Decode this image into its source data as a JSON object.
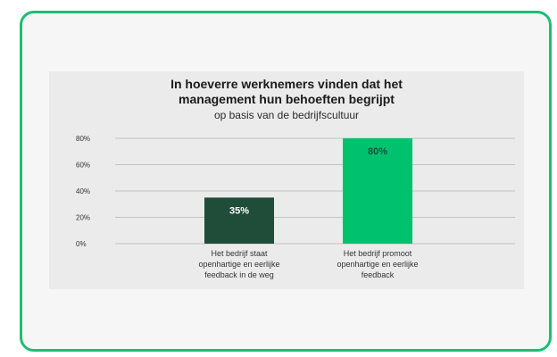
{
  "chart_data": {
    "type": "bar",
    "title": "In hoeverre werknemers vinden dat het management hun behoeften begrijpt",
    "title_lines": [
      "In hoeverre werknemers vinden dat het",
      "management hun behoeften begrijpt"
    ],
    "subtitle": "op basis van de bedrijfscultuur",
    "categories": [
      "Het bedrijf staat openhartige en eerlijke feedback in de weg",
      "Het bedrijf promoot openhartige en eerlijke feedback"
    ],
    "category_lines": [
      [
        "Het bedrijf staat",
        "openhartige en eerlijke",
        "feedback in de weg"
      ],
      [
        "Het bedrijf promoot",
        "openhartige en eerlijke",
        "feedback"
      ]
    ],
    "values": [
      35,
      80
    ],
    "data_labels": [
      "35%",
      "80%"
    ],
    "bar_colors": [
      "#1f4d3a",
      "#00c16e"
    ],
    "data_label_colors": [
      "#ffffff",
      "#1f4d3a"
    ],
    "yticks": [
      0,
      20,
      40,
      60,
      80
    ],
    "ytick_labels": [
      "0%",
      "20%",
      "40%",
      "60%",
      "80%"
    ],
    "ylim": [
      0,
      80
    ],
    "xlabel": "",
    "ylabel": "",
    "grid": true,
    "legend": false
  },
  "colors": {
    "frame_border": "#1ebd74",
    "panel_background": "#ebebeb",
    "gridline": "#b5b5b5"
  }
}
